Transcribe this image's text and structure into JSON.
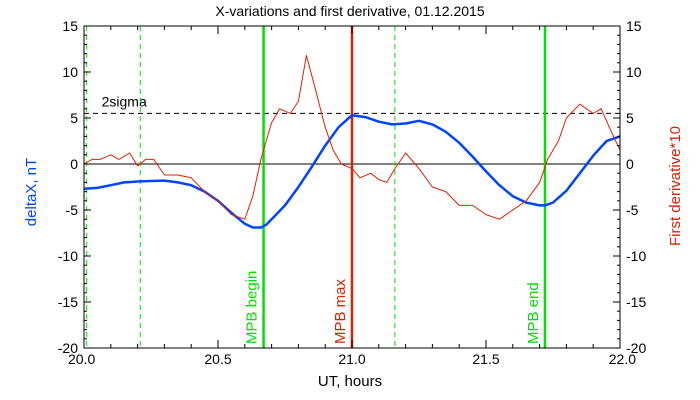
{
  "chart_data": {
    "type": "line",
    "title": "X-variations and first derivative, 01.12.2015",
    "xlabel": "UT, hours",
    "ylabel_left": "deltaX, nT",
    "ylabel_right": "First derivative*10",
    "xlim": [
      20.0,
      22.0
    ],
    "ylim": [
      -20,
      15
    ],
    "x_ticks": [
      "20.0",
      "20.5",
      "21.0",
      "21.5",
      "22.0"
    ],
    "x_tick_values": [
      20.0,
      20.5,
      21.0,
      21.5,
      22.0
    ],
    "y_ticks": [
      "15",
      "10",
      "5",
      "0",
      "-5",
      "-10",
      "-15",
      "-20"
    ],
    "y_tick_values": [
      15,
      10,
      5,
      0,
      -5,
      -10,
      -15,
      -20
    ],
    "grid": false,
    "zero_line": 0,
    "sigma_level": 5.5,
    "sigma_label": "2sigma",
    "vertical_markers": [
      {
        "label": "MPB begin",
        "x": 20.67,
        "color": "#00e000"
      },
      {
        "label": "MPB max",
        "x": 21.0,
        "color": "#e02000"
      },
      {
        "label": "MPB end",
        "x": 21.72,
        "color": "#00e000"
      }
    ],
    "dashed_markers": [
      20.01,
      20.21,
      21.16
    ],
    "series": [
      {
        "color": "#0044ff",
        "axis": "left",
        "x": [
          20.0,
          20.05,
          20.1,
          20.15,
          20.2,
          20.25,
          20.3,
          20.35,
          20.4,
          20.45,
          20.5,
          20.55,
          20.6,
          20.63,
          20.66,
          20.68,
          20.7,
          20.75,
          20.8,
          20.85,
          20.9,
          20.95,
          21.0,
          21.05,
          21.1,
          21.15,
          21.2,
          21.25,
          21.3,
          21.35,
          21.4,
          21.45,
          21.5,
          21.55,
          21.6,
          21.65,
          21.7,
          21.72,
          21.75,
          21.8,
          21.85,
          21.9,
          21.95,
          22.0
        ],
        "values": [
          -2.7,
          -2.6,
          -2.3,
          -2.0,
          -1.9,
          -1.85,
          -1.8,
          -2.0,
          -2.3,
          -3.0,
          -4.0,
          -5.3,
          -6.5,
          -6.9,
          -6.9,
          -6.6,
          -6.0,
          -4.5,
          -2.5,
          -0.3,
          2.0,
          4.0,
          5.3,
          5.1,
          4.6,
          4.3,
          4.4,
          4.7,
          4.3,
          3.5,
          2.3,
          0.8,
          -0.8,
          -2.3,
          -3.5,
          -4.2,
          -4.5,
          -4.5,
          -4.2,
          -2.9,
          -1.0,
          0.9,
          2.5,
          3.0
        ]
      },
      {
        "color": "#e02000",
        "axis": "right",
        "x": [
          20.0,
          20.03,
          20.06,
          20.1,
          20.13,
          20.17,
          20.2,
          20.23,
          20.26,
          20.3,
          20.35,
          20.4,
          20.45,
          20.5,
          20.55,
          20.6,
          20.63,
          20.66,
          20.7,
          20.73,
          20.77,
          20.8,
          20.83,
          20.86,
          20.9,
          20.93,
          20.96,
          21.0,
          21.03,
          21.07,
          21.1,
          21.13,
          21.16,
          21.2,
          21.25,
          21.3,
          21.35,
          21.4,
          21.45,
          21.5,
          21.55,
          21.6,
          21.65,
          21.7,
          21.73,
          21.77,
          21.8,
          21.85,
          21.9,
          21.93,
          21.96,
          22.0
        ],
        "values": [
          0.0,
          0.5,
          0.5,
          1.0,
          0.5,
          1.2,
          -0.2,
          0.5,
          0.5,
          -1.2,
          -1.2,
          -1.5,
          -3.0,
          -4.0,
          -5.5,
          -6.0,
          -3.5,
          0.5,
          4.5,
          6.0,
          5.5,
          6.8,
          11.8,
          8.5,
          4.0,
          1.5,
          0.0,
          -0.5,
          -1.5,
          -1.0,
          -1.7,
          -2.0,
          -0.5,
          1.2,
          -0.5,
          -2.5,
          -3.0,
          -4.5,
          -4.5,
          -5.5,
          -6.0,
          -5.0,
          -4.0,
          -2.0,
          0.5,
          2.5,
          5.0,
          6.5,
          5.5,
          6.0,
          4.0,
          1.5
        ]
      }
    ]
  }
}
